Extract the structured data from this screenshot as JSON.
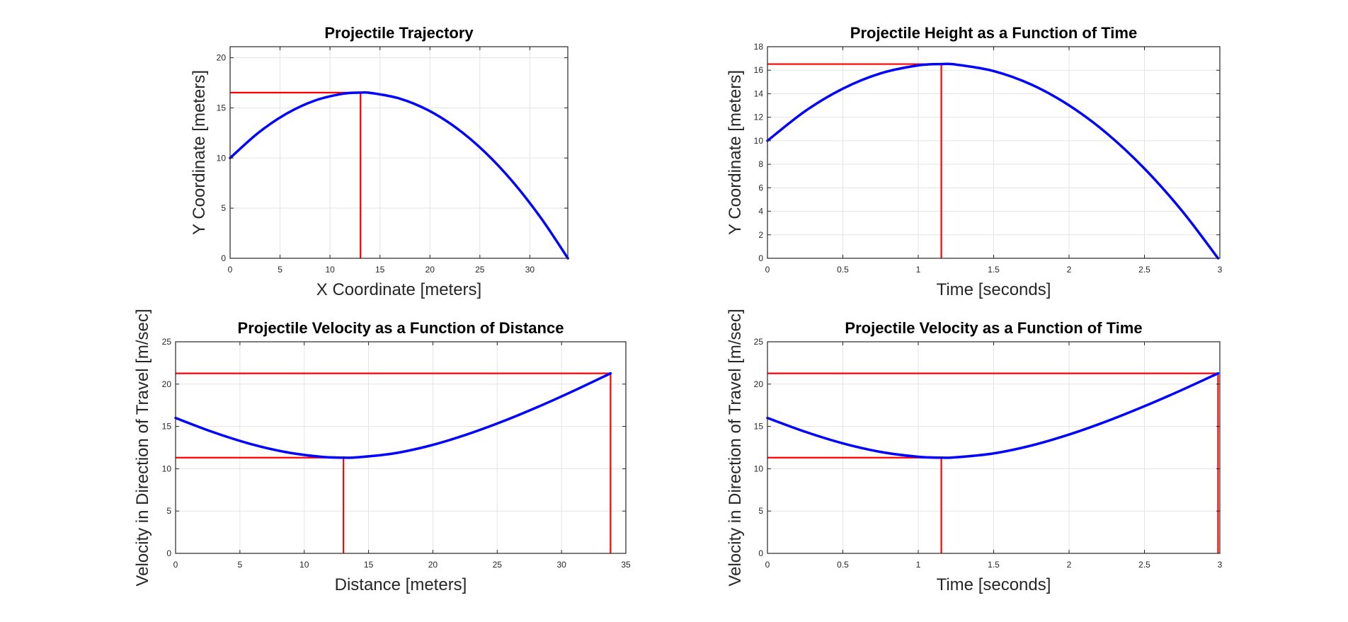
{
  "colors": {
    "curve": "#0000ff",
    "reference": "#ff0000",
    "grid": "#e3e3e3",
    "axes": "#262626"
  },
  "chart_data": [
    {
      "type": "line",
      "title": "Projectile Trajectory",
      "xlabel": "X Coordinate [meters]",
      "ylabel": "Y Coordinate [meters]",
      "xlim": [
        0,
        33.8
      ],
      "ylim": [
        0,
        21.1
      ],
      "xticks": [
        0,
        5,
        10,
        15,
        20,
        25,
        30
      ],
      "yticks": [
        0,
        5,
        10,
        15,
        20
      ],
      "grid": true,
      "series": [
        {
          "x": [
            0,
            2.83,
            5.66,
            8.49,
            11.31,
            13.05,
            14.14,
            16.97,
            19.8,
            22.63,
            25.46,
            28.29,
            31.11,
            33.81
          ],
          "y": [
            10,
            12.52,
            14.43,
            15.73,
            16.41,
            16.52,
            16.48,
            15.93,
            14.78,
            13.01,
            10.63,
            7.63,
            4.02,
            0
          ]
        }
      ],
      "reference_lines": [
        {
          "x": [
            0,
            13.05
          ],
          "y": [
            16.52,
            16.52
          ]
        },
        {
          "x": [
            13.05,
            13.05
          ],
          "y": [
            0,
            16.52
          ]
        }
      ]
    },
    {
      "type": "line",
      "title": "Projectile Height as a Function of Time",
      "xlabel": "Time [seconds]",
      "ylabel": "Y Coordinate [meters]",
      "xlim": [
        0,
        3
      ],
      "ylim": [
        0,
        18
      ],
      "xticks": [
        0,
        0.5,
        1,
        1.5,
        2,
        2.5,
        3
      ],
      "yticks": [
        0,
        2,
        4,
        6,
        8,
        10,
        12,
        14,
        16,
        18
      ],
      "grid": true,
      "series": [
        {
          "x": [
            0,
            0.25,
            0.5,
            0.75,
            1.0,
            1.153,
            1.25,
            1.5,
            1.75,
            2.0,
            2.25,
            2.5,
            2.75,
            2.988
          ],
          "y": [
            10,
            12.52,
            14.43,
            15.73,
            16.41,
            16.52,
            16.48,
            15.93,
            14.78,
            13.01,
            10.63,
            7.63,
            4.02,
            0
          ]
        }
      ],
      "reference_lines": [
        {
          "x": [
            0,
            1.153
          ],
          "y": [
            16.52,
            16.52
          ]
        },
        {
          "x": [
            1.153,
            1.153
          ],
          "y": [
            0,
            16.52
          ]
        }
      ]
    },
    {
      "type": "line",
      "title": "Projectile Velocity as a Function of Distance",
      "xlabel": "Distance [meters]",
      "ylabel": "Velocity in Direction of Travel [m/sec]",
      "xlim": [
        0,
        35
      ],
      "ylim": [
        0,
        25
      ],
      "xticks": [
        0,
        5,
        10,
        15,
        20,
        25,
        30,
        35
      ],
      "yticks": [
        0,
        5,
        10,
        15,
        20,
        25
      ],
      "grid": true,
      "series": [
        {
          "x": [
            0,
            2.83,
            5.66,
            8.49,
            11.31,
            13.05,
            14.14,
            16.97,
            19.8,
            22.63,
            25.46,
            28.29,
            31.11,
            33.81
          ],
          "y": [
            16.0,
            14.37,
            13.0,
            11.99,
            11.41,
            11.31,
            11.35,
            11.81,
            12.74,
            14.04,
            15.61,
            17.39,
            19.32,
            21.27
          ]
        }
      ],
      "reference_lines": [
        {
          "x": [
            0,
            13.05
          ],
          "y": [
            11.31,
            11.31
          ]
        },
        {
          "x": [
            13.05,
            13.05
          ],
          "y": [
            0,
            11.31
          ]
        },
        {
          "x": [
            0,
            33.81
          ],
          "y": [
            21.27,
            21.27
          ]
        },
        {
          "x": [
            33.81,
            33.81
          ],
          "y": [
            0,
            21.27
          ]
        }
      ]
    },
    {
      "type": "line",
      "title": "Projectile Velocity as a Function of Time",
      "xlabel": "Time [seconds]",
      "ylabel": "Velocity in Direction of Travel [m/sec]",
      "xlim": [
        0,
        3
      ],
      "ylim": [
        0,
        25
      ],
      "xticks": [
        0,
        0.5,
        1,
        1.5,
        2,
        2.5,
        3
      ],
      "yticks": [
        0,
        5,
        10,
        15,
        20,
        25
      ],
      "grid": true,
      "series": [
        {
          "x": [
            0,
            0.25,
            0.5,
            0.75,
            1.0,
            1.153,
            1.25,
            1.5,
            1.75,
            2.0,
            2.25,
            2.5,
            2.75,
            2.988
          ],
          "y": [
            16.0,
            14.37,
            13.0,
            11.99,
            11.41,
            11.31,
            11.35,
            11.81,
            12.74,
            14.04,
            15.61,
            17.39,
            19.32,
            21.27
          ]
        }
      ],
      "reference_lines": [
        {
          "x": [
            0,
            1.153
          ],
          "y": [
            11.31,
            11.31
          ]
        },
        {
          "x": [
            1.153,
            1.153
          ],
          "y": [
            0,
            11.31
          ]
        },
        {
          "x": [
            0,
            2.988
          ],
          "y": [
            21.27,
            21.27
          ]
        },
        {
          "x": [
            2.988,
            2.988
          ],
          "y": [
            0,
            21.27
          ]
        }
      ]
    }
  ]
}
